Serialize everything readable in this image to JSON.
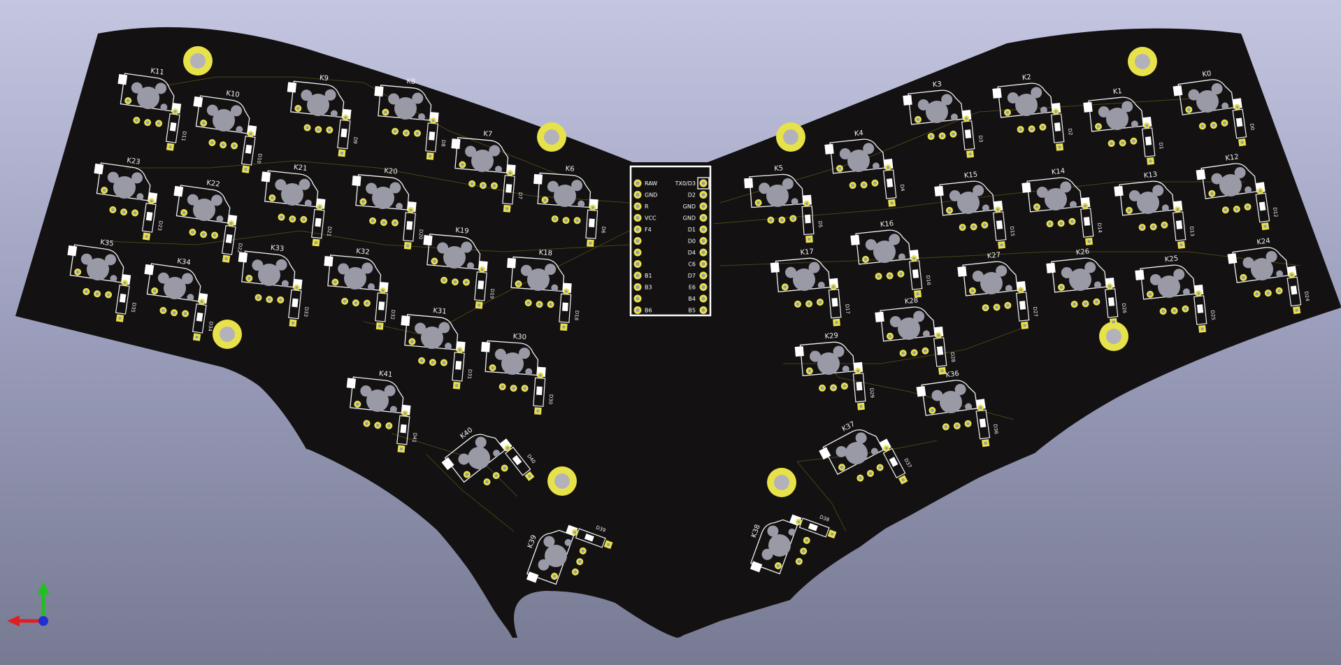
{
  "viewer": {
    "background_top": "#c4c6e1",
    "background_bottom": "#777a92"
  },
  "board": {
    "substrate_color": "#131111",
    "silkscreen_color": "#f2f2f2",
    "pad_color": "#e8e24a",
    "hole_color": "#9a99a6",
    "trace_color": "#4a4416"
  },
  "switches": [
    {
      "id": "K11",
      "diode": "D11"
    },
    {
      "id": "K10",
      "diode": "D10"
    },
    {
      "id": "K9",
      "diode": "D9"
    },
    {
      "id": "K8",
      "diode": "D8"
    },
    {
      "id": "K7",
      "diode": "D7"
    },
    {
      "id": "K6",
      "diode": "D6"
    },
    {
      "id": "K23",
      "diode": "D23"
    },
    {
      "id": "K22",
      "diode": "D22"
    },
    {
      "id": "K21",
      "diode": "D21"
    },
    {
      "id": "K20",
      "diode": "D20"
    },
    {
      "id": "K19",
      "diode": "D19"
    },
    {
      "id": "K18",
      "diode": "D18"
    },
    {
      "id": "K35",
      "diode": "D35"
    },
    {
      "id": "K34",
      "diode": "D34"
    },
    {
      "id": "K33",
      "diode": "D33"
    },
    {
      "id": "K32",
      "diode": "D32"
    },
    {
      "id": "K31",
      "diode": "D31"
    },
    {
      "id": "K30",
      "diode": "D30"
    },
    {
      "id": "K41",
      "diode": "D41"
    },
    {
      "id": "K40",
      "diode": "D40"
    },
    {
      "id": "K39",
      "diode": "D39"
    },
    {
      "id": "K5",
      "diode": "D5"
    },
    {
      "id": "K4",
      "diode": "D4"
    },
    {
      "id": "K3",
      "diode": "D3"
    },
    {
      "id": "K2",
      "diode": "D2"
    },
    {
      "id": "K1",
      "diode": "D1"
    },
    {
      "id": "K0",
      "diode": "D0"
    },
    {
      "id": "K17",
      "diode": "D17"
    },
    {
      "id": "K16",
      "diode": "D16"
    },
    {
      "id": "K15",
      "diode": "D15"
    },
    {
      "id": "K14",
      "diode": "D14"
    },
    {
      "id": "K13",
      "diode": "D13"
    },
    {
      "id": "K12",
      "diode": "D12"
    },
    {
      "id": "K29",
      "diode": "D29"
    },
    {
      "id": "K28",
      "diode": "D28"
    },
    {
      "id": "K27",
      "diode": "D27"
    },
    {
      "id": "K26",
      "diode": "D26"
    },
    {
      "id": "K25",
      "diode": "D25"
    },
    {
      "id": "K24",
      "diode": "D24"
    },
    {
      "id": "K36",
      "diode": "D36"
    },
    {
      "id": "K37",
      "diode": "D37"
    },
    {
      "id": "K38",
      "diode": "D38"
    }
  ],
  "mcu": {
    "left_pins": [
      "RAW",
      "GND",
      "R",
      "VCC",
      "F4",
      "",
      "",
      "",
      "B1",
      "B3",
      "",
      "B6"
    ],
    "right_pins": [
      "TX0/D3",
      "D2",
      "GND",
      "GND",
      "D1",
      "D0",
      "D4",
      "C6",
      "D7",
      "E6",
      "B4",
      "B5"
    ]
  },
  "axis_indicator": {
    "x_color": "#e02020",
    "y_color": "#20c020",
    "z_color": "#2030d0"
  }
}
